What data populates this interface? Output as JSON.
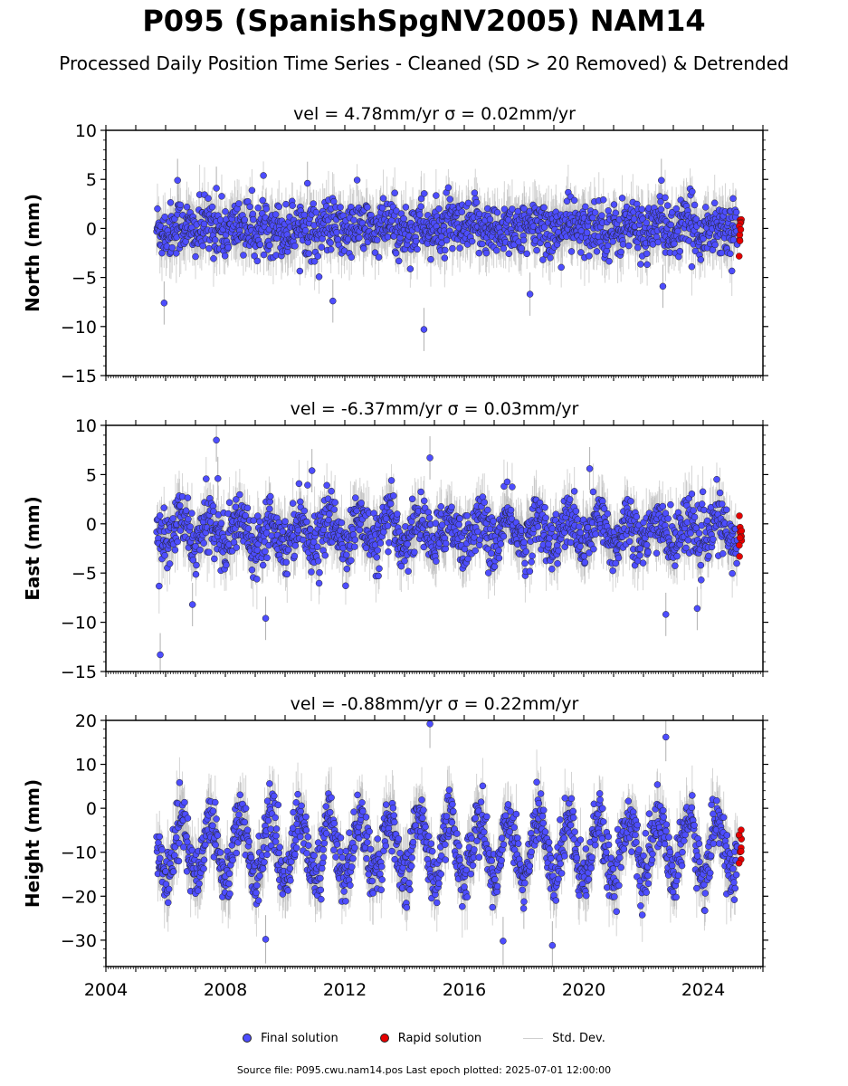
{
  "title": "P095 (SpanishSpgNV2005) NAM14",
  "subtitle": "Processed Daily Position Time Series - Cleaned (SD > 20 Removed) & Detrended",
  "footer": "Source file: P095.cwu.nam14.pos  Last epoch plotted: 2025-07-01 12:00:00",
  "legend": {
    "final": "Final solution",
    "rapid": "Rapid solution",
    "std": "Std. Dev."
  },
  "colors": {
    "final": "#4d4dff",
    "rapid": "#e60000",
    "std": "#b0b0b0",
    "edge": "#222222"
  },
  "chart_data": [
    {
      "type": "scatter",
      "title": "vel = 4.78mm/yr   σ = 0.02mm/yr",
      "ylabel": "North (mm)",
      "xlim": [
        2004,
        2026
      ],
      "ylim": [
        -15,
        10
      ],
      "yticks": [
        -15,
        -10,
        -5,
        0,
        5,
        10
      ],
      "start": 2005.7,
      "rapid_start": 2025.15,
      "end": 2025.5,
      "sd": 2.2,
      "outliers": [
        [
          2005.95,
          -7.6
        ],
        [
          2006.4,
          4.9
        ],
        [
          2007.7,
          4.1
        ],
        [
          2010.75,
          4.6
        ],
        [
          2014.65,
          -10.3
        ],
        [
          2022.6,
          4.9
        ],
        [
          2022.65,
          -5.9
        ],
        [
          2011.6,
          -7.4
        ],
        [
          2018.2,
          -6.7
        ]
      ]
    },
    {
      "type": "scatter",
      "title": "vel = -6.37mm/yr   σ = 0.03mm/yr",
      "ylabel": "East (mm)",
      "xlim": [
        2004,
        2026
      ],
      "ylim": [
        -15,
        10
      ],
      "yticks": [
        -15,
        -10,
        -5,
        0,
        5,
        10
      ],
      "start": 2005.7,
      "rapid_start": 2025.15,
      "end": 2025.5,
      "sd": 2.2,
      "outliers": [
        [
          2005.82,
          -13.3
        ],
        [
          2007.7,
          8.5
        ],
        [
          2007.75,
          4.6
        ],
        [
          2010.9,
          5.4
        ],
        [
          2014.85,
          6.7
        ],
        [
          2020.2,
          5.6
        ],
        [
          2009.35,
          -9.6
        ],
        [
          2022.75,
          -9.2
        ],
        [
          2023.8,
          -8.6
        ],
        [
          2006.9,
          -8.2
        ]
      ]
    },
    {
      "type": "scatter",
      "title": "vel = -0.88mm/yr   σ = 0.22mm/yr",
      "ylabel": "Height (mm)",
      "xlim": [
        2004,
        2026
      ],
      "ylim": [
        -36,
        20
      ],
      "yticks": [
        -30,
        -20,
        -10,
        0,
        10,
        20
      ],
      "xticks": [
        2004,
        2008,
        2012,
        2016,
        2020,
        2024
      ],
      "start": 2005.7,
      "rapid_start": 2025.15,
      "end": 2025.5,
      "sd": 5.5,
      "outliers": [
        [
          2014.85,
          19.2
        ],
        [
          2022.75,
          16.2
        ],
        [
          2018.95,
          -31.2
        ],
        [
          2009.35,
          -29.8
        ],
        [
          2017.3,
          -30.2
        ]
      ]
    }
  ]
}
